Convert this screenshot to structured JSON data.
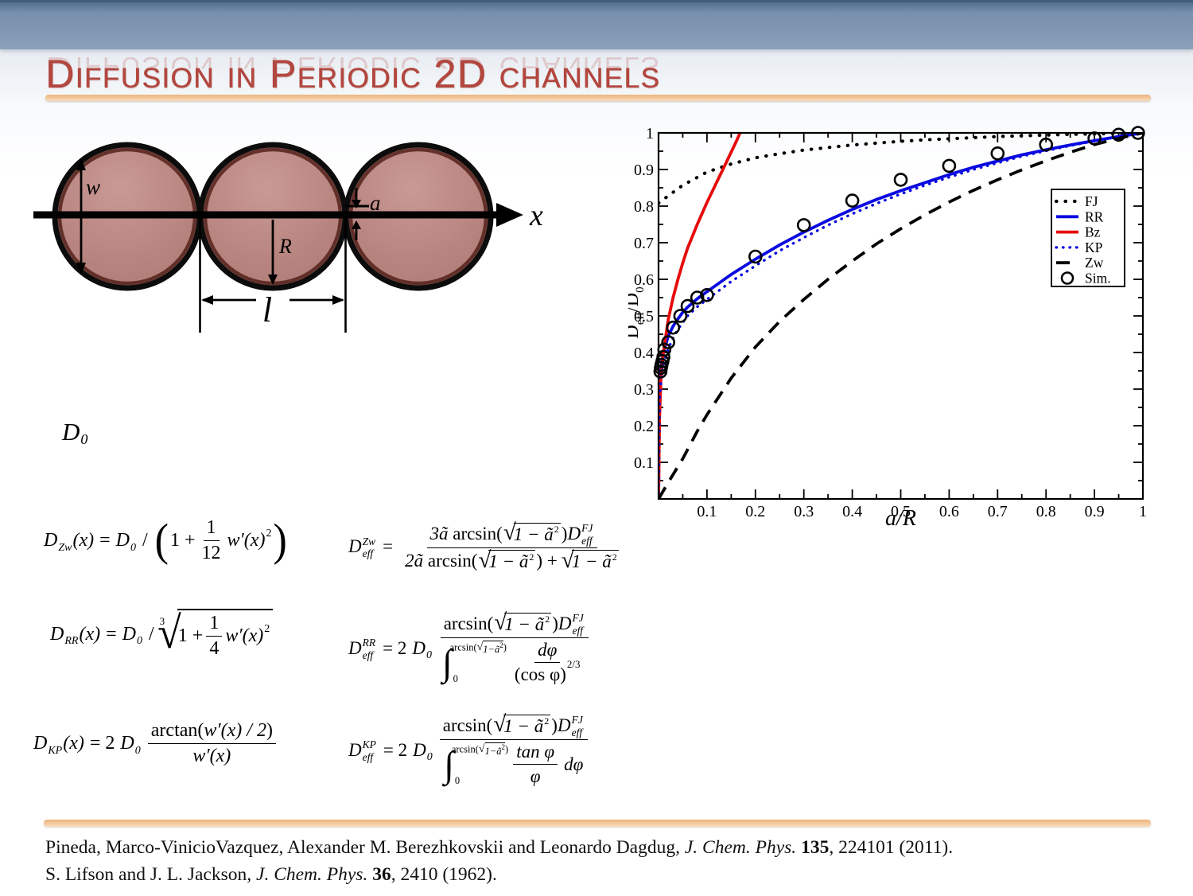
{
  "slide": {
    "title": "Diffusion in Periodic 2D channels"
  },
  "symbols": {
    "sqrt": "√",
    "integral": "∫"
  },
  "diagram": {
    "labels": {
      "w": "w",
      "a": "a",
      "R": "R",
      "l": "l",
      "x": "x"
    }
  },
  "chart_data": {
    "type": "line",
    "xlabel": "a/R",
    "ylabel": "D_eff/D_0",
    "ylabel_parts": [
      "D",
      "eff",
      "/D",
      "0"
    ],
    "xlim": [
      0,
      1
    ],
    "ylim": [
      0,
      1
    ],
    "grid": false,
    "legend_position": "right-middle",
    "x_major": [
      0.1,
      0.2,
      0.3,
      0.4,
      0.5,
      0.6,
      0.7,
      0.8,
      0.9,
      1
    ],
    "x_labels": [
      "0.1",
      "0.2",
      "0.3",
      "0.4",
      "0.5",
      "0.6",
      "0.7",
      "0.8",
      "0.9",
      "1"
    ],
    "x_minor": [
      0.05,
      0.15,
      0.25,
      0.35,
      0.45,
      0.55,
      0.65,
      0.75,
      0.85,
      0.95
    ],
    "y_major": [
      0.1,
      0.2,
      0.3,
      0.4,
      0.5,
      0.6,
      0.7,
      0.8,
      0.9,
      1
    ],
    "y_labels": [
      "0.1",
      "0.2",
      "0.3",
      "0.4",
      "0.5",
      "0.6",
      "0.7",
      "0.8",
      "0.9",
      "1"
    ],
    "y_minor": [
      0.05,
      0.15,
      0.25,
      0.35,
      0.45,
      0.55,
      0.65,
      0.75,
      0.85,
      0.95
    ],
    "series": [
      {
        "name": "FJ",
        "color": "#000000",
        "width": 4.2,
        "dasharray": "0.5 11",
        "linecap": "round",
        "points": [
          [
            0,
            0.808
          ],
          [
            0.02,
            0.828
          ],
          [
            0.05,
            0.857
          ],
          [
            0.1,
            0.893
          ],
          [
            0.15,
            0.915
          ],
          [
            0.2,
            0.932
          ],
          [
            0.25,
            0.943
          ],
          [
            0.3,
            0.953
          ],
          [
            0.35,
            0.96
          ],
          [
            0.4,
            0.967
          ],
          [
            0.45,
            0.972
          ],
          [
            0.5,
            0.977
          ],
          [
            0.55,
            0.981
          ],
          [
            0.6,
            0.984
          ],
          [
            0.65,
            0.987
          ],
          [
            0.7,
            0.99
          ],
          [
            0.75,
            0.992
          ],
          [
            0.8,
            0.994
          ],
          [
            0.85,
            0.996
          ],
          [
            0.9,
            0.997
          ],
          [
            0.95,
            0.999
          ],
          [
            1,
            1
          ]
        ]
      },
      {
        "name": "RR",
        "color": "#0a0ae0",
        "width": 3.8,
        "dasharray": null,
        "points": [
          [
            0,
            0
          ],
          [
            0.002,
            0.3
          ],
          [
            0.005,
            0.355
          ],
          [
            0.01,
            0.4
          ],
          [
            0.02,
            0.445
          ],
          [
            0.03,
            0.472
          ],
          [
            0.04,
            0.492
          ],
          [
            0.05,
            0.51
          ],
          [
            0.06,
            0.524
          ],
          [
            0.08,
            0.547
          ],
          [
            0.1,
            0.566
          ],
          [
            0.15,
            0.613
          ],
          [
            0.2,
            0.655
          ],
          [
            0.25,
            0.694
          ],
          [
            0.3,
            0.729
          ],
          [
            0.35,
            0.761
          ],
          [
            0.4,
            0.791
          ],
          [
            0.45,
            0.818
          ],
          [
            0.5,
            0.842
          ],
          [
            0.55,
            0.864
          ],
          [
            0.6,
            0.886
          ],
          [
            0.65,
            0.906
          ],
          [
            0.7,
            0.923
          ],
          [
            0.75,
            0.94
          ],
          [
            0.8,
            0.954
          ],
          [
            0.85,
            0.967
          ],
          [
            0.9,
            0.979
          ],
          [
            0.95,
            0.99
          ],
          [
            1,
            1
          ]
        ]
      },
      {
        "name": "Bz",
        "color": "#e60c0c",
        "width": 3.8,
        "dasharray": null,
        "points": [
          [
            0,
            0
          ],
          [
            0.002,
            0.22
          ],
          [
            0.005,
            0.33
          ],
          [
            0.01,
            0.4
          ],
          [
            0.02,
            0.49
          ],
          [
            0.03,
            0.55
          ],
          [
            0.04,
            0.6
          ],
          [
            0.05,
            0.645
          ],
          [
            0.06,
            0.685
          ],
          [
            0.08,
            0.75
          ],
          [
            0.1,
            0.81
          ],
          [
            0.12,
            0.865
          ],
          [
            0.14,
            0.92
          ],
          [
            0.16,
            0.975
          ],
          [
            0.175,
            1.02
          ]
        ]
      },
      {
        "name": "KP",
        "color": "#0a0ae0",
        "width": 3.4,
        "dasharray": "0.5 8",
        "linecap": "round",
        "points": [
          [
            0,
            0
          ],
          [
            0.002,
            0.27
          ],
          [
            0.005,
            0.32
          ],
          [
            0.01,
            0.365
          ],
          [
            0.02,
            0.41
          ],
          [
            0.03,
            0.44
          ],
          [
            0.04,
            0.463
          ],
          [
            0.05,
            0.482
          ],
          [
            0.06,
            0.5
          ],
          [
            0.08,
            0.525
          ],
          [
            0.1,
            0.545
          ],
          [
            0.15,
            0.594
          ],
          [
            0.2,
            0.637
          ],
          [
            0.25,
            0.678
          ],
          [
            0.3,
            0.714
          ],
          [
            0.35,
            0.748
          ],
          [
            0.4,
            0.779
          ],
          [
            0.45,
            0.807
          ],
          [
            0.5,
            0.833
          ],
          [
            0.55,
            0.857
          ],
          [
            0.6,
            0.879
          ],
          [
            0.65,
            0.9
          ],
          [
            0.7,
            0.918
          ],
          [
            0.75,
            0.936
          ],
          [
            0.8,
            0.951
          ],
          [
            0.85,
            0.965
          ],
          [
            0.9,
            0.978
          ],
          [
            0.95,
            0.99
          ],
          [
            1,
            1
          ]
        ]
      },
      {
        "name": "Zw",
        "color": "#000000",
        "width": 3.8,
        "dasharray": "17 11",
        "points": [
          [
            0,
            0
          ],
          [
            0.02,
            0.045
          ],
          [
            0.05,
            0.11
          ],
          [
            0.08,
            0.185
          ],
          [
            0.1,
            0.23
          ],
          [
            0.15,
            0.33
          ],
          [
            0.2,
            0.415
          ],
          [
            0.25,
            0.485
          ],
          [
            0.3,
            0.545
          ],
          [
            0.35,
            0.6
          ],
          [
            0.4,
            0.65
          ],
          [
            0.45,
            0.697
          ],
          [
            0.5,
            0.738
          ],
          [
            0.55,
            0.776
          ],
          [
            0.6,
            0.811
          ],
          [
            0.65,
            0.843
          ],
          [
            0.7,
            0.872
          ],
          [
            0.75,
            0.899
          ],
          [
            0.8,
            0.924
          ],
          [
            0.85,
            0.947
          ],
          [
            0.9,
            0.968
          ],
          [
            0.95,
            0.985
          ],
          [
            1,
            1
          ]
        ]
      },
      {
        "name": "Sim.",
        "color": "#000000",
        "marker": "circle",
        "r": 7.5,
        "width": 2.6,
        "points": [
          [
            0.004,
            0.348
          ],
          [
            0.005,
            0.358
          ],
          [
            0.006,
            0.366
          ],
          [
            0.008,
            0.376
          ],
          [
            0.01,
            0.388
          ],
          [
            0.012,
            0.408
          ],
          [
            0.02,
            0.428
          ],
          [
            0.03,
            0.468
          ],
          [
            0.045,
            0.5
          ],
          [
            0.06,
            0.527
          ],
          [
            0.08,
            0.55
          ],
          [
            0.1,
            0.557
          ],
          [
            0.2,
            0.662
          ],
          [
            0.3,
            0.748
          ],
          [
            0.4,
            0.815
          ],
          [
            0.5,
            0.872
          ],
          [
            0.6,
            0.91
          ],
          [
            0.7,
            0.944
          ],
          [
            0.8,
            0.968
          ],
          [
            0.9,
            0.985
          ],
          [
            0.95,
            0.995
          ],
          [
            0.99,
            1.0
          ]
        ]
      }
    ]
  },
  "formulas": {
    "d0": {
      "D": "D",
      "sub": "0"
    },
    "zw_local": {
      "lhs_D": "D",
      "lhs_sub": "Zw",
      "lhs_tail": "(x)",
      "eq": "=",
      "rhs_D": "D",
      "rhs_sub": "0",
      "slash": "/",
      "lp": "(",
      "pre": "1 +",
      "num": "1",
      "den": "12",
      "body": "w′(x)",
      "exp": "2",
      "rp": ")"
    },
    "rr_local": {
      "lhs_D": "D",
      "lhs_sub": "RR",
      "lhs_tail": "(x)",
      "eq": "=",
      "rhs_D": "D",
      "rhs_sub": "0",
      "slash": "/",
      "root_idx": "3",
      "pre": "1 +",
      "num": "1",
      "den": "4",
      "body": "w′(x)",
      "exp": "2"
    },
    "kp_local": {
      "lhs_D": "D",
      "lhs_sub": "KP",
      "lhs_tail": "(x)",
      "eq": "= 2",
      "rhs_D": "D",
      "rhs_sub": "0",
      "num_fn": "arctan(",
      "num_arg": "w′(x) / 2",
      "num_rp": ")",
      "den": "w′(x)"
    },
    "zw_eff": {
      "lhs_D": "D",
      "lhs_sup": "Zw",
      "lhs_sub": "eff",
      "eq": "=",
      "num_coef": "3ã",
      "num_fn": "arcsin(",
      "num_rad": "1 − ã",
      "num_rad_exp": "2",
      "num_rp": ")",
      "num_D": "D",
      "num_D_sup": "FJ",
      "num_D_sub": "eff",
      "den_coef": "2ã",
      "den_fn": "arcsin(",
      "den_rad": "1 − ã",
      "den_rad_exp": "2",
      "den_plus": ") +",
      "den_rad2": "1 − ã",
      "den_rad2_exp": "2"
    },
    "rr_eff": {
      "lhs_D": "D",
      "lhs_sup": "RR",
      "lhs_sub": "eff",
      "eq": "= 2",
      "rhs_D": "D",
      "rhs_sub": "0",
      "num_fn": "arcsin(",
      "num_rad": "1 − ã",
      "num_rad_exp": "2",
      "num_rp": ")",
      "num_D": "D",
      "num_D_sup": "FJ",
      "num_D_sub": "eff",
      "int_lo": "0",
      "int_hi_fn": "arcsin(",
      "int_hi_rad": "1−ã",
      "int_hi_exp": "2",
      "int_hi_rp": ")",
      "inner_num": "dφ",
      "inner_den": "(cos φ)",
      "inner_exp": "2/3"
    },
    "kp_eff": {
      "lhs_D": "D",
      "lhs_sup": "KP",
      "lhs_sub": "eff",
      "eq": "= 2",
      "rhs_D": "D",
      "rhs_sub": "0",
      "num_fn": "arcsin(",
      "num_rad": "1 − ã",
      "num_rad_exp": "2",
      "num_rp": ")",
      "num_D": "D",
      "num_D_sup": "FJ",
      "num_D_sub": "eff",
      "int_lo": "0",
      "int_hi_fn": "arcsin(",
      "int_hi_rad": "1−ã",
      "int_hi_exp": "2",
      "int_hi_rp": ")",
      "inner_num": "tan φ",
      "inner_den": "φ",
      "tail": "dφ"
    }
  },
  "references": [
    {
      "pre": "Pineda, Marco-VinicioVazquez, Alexander M. Berezhkovskii and Leonardo Dagdug, ",
      "journal": "J. Chem. Phys. ",
      "volume": "135",
      "post": ", 224101 (2011)."
    },
    {
      "pre": "S. Lifson and J. L. Jackson, ",
      "journal": "J. Chem. Phys. ",
      "volume": "36",
      "post": ", 2410 (1962)."
    }
  ]
}
